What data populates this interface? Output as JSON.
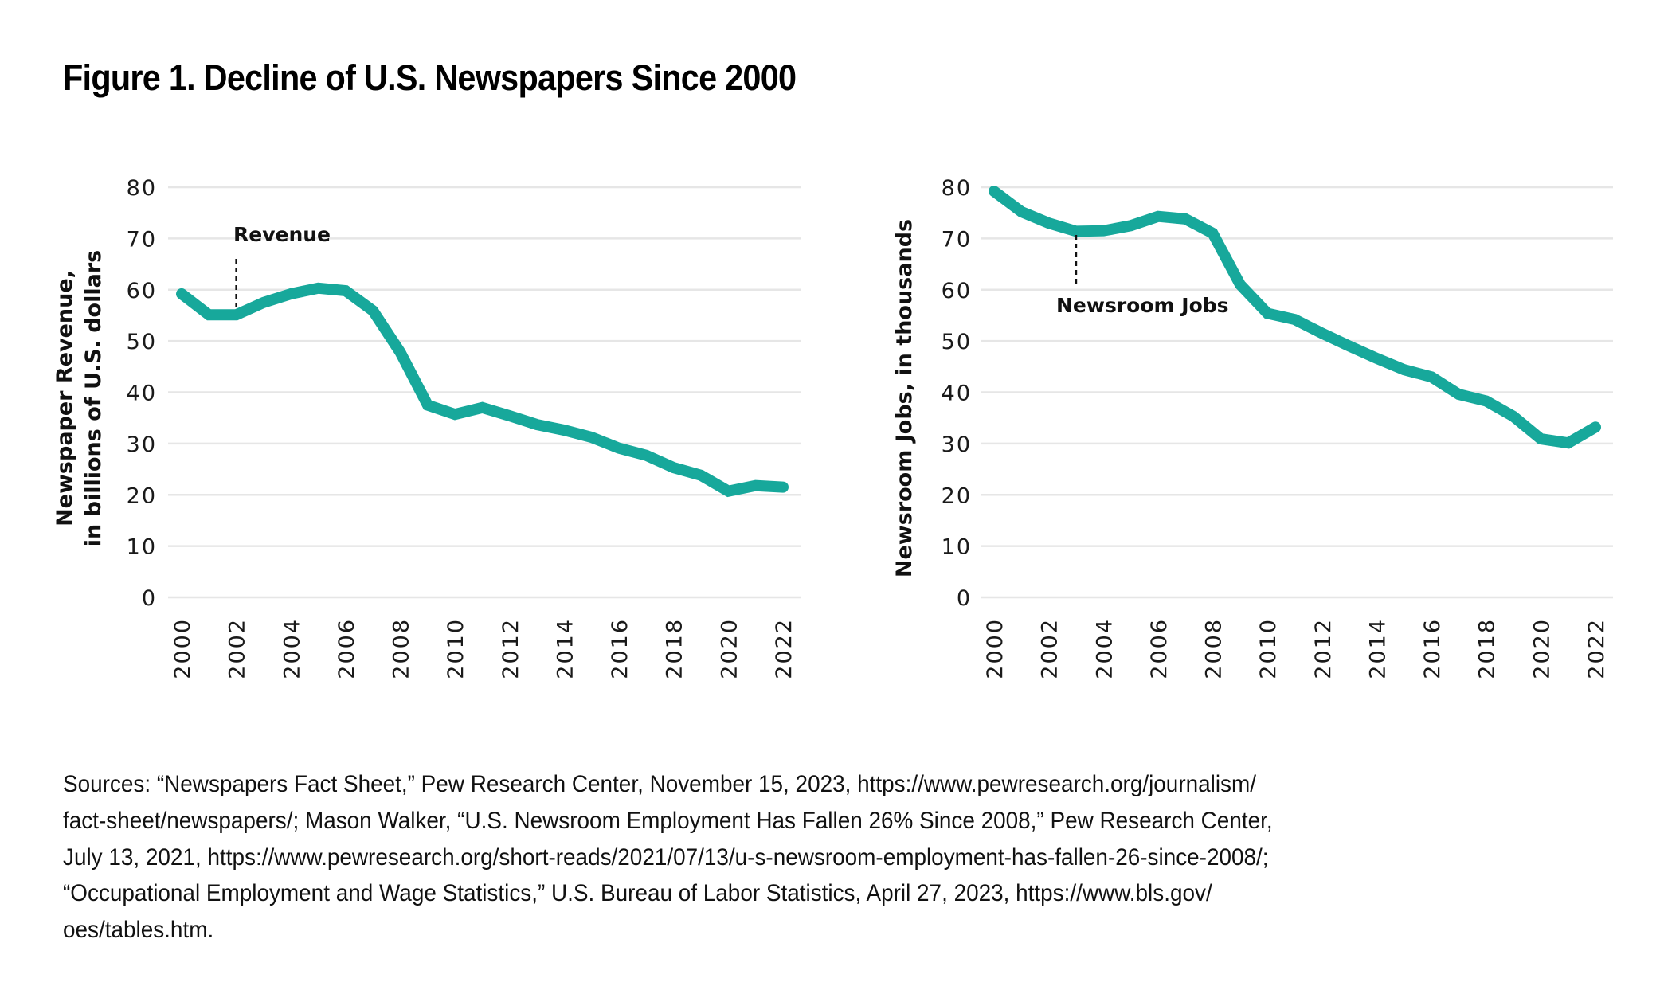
{
  "figure": {
    "title": "Figure 1. Decline of U.S. Newspapers Since 2000",
    "footnote_lines": [
      "Sources: “Newspapers Fact Sheet,” Pew Research Center, November 15, 2023, https://www.pewresearch.org/journalism/",
      "fact-sheet/newspapers/; Mason Walker, “U.S. Newsroom Employment Has Fallen 26% Since 2008,” Pew Research Center,",
      "July 13, 2021, https://www.pewresearch.org/short-reads/2021/07/13/u-s-newsroom-employment-has-fallen-26-since-2008/;",
      "“Occupational Employment and Wage Statistics,” U.S. Bureau of Labor Statistics, April 27, 2023, https://www.bls.gov/",
      "oes/tables.htm."
    ]
  },
  "colors": {
    "series": "#17a89b",
    "grid": "#e6e6e6",
    "text": "#111111"
  },
  "chart_data": [
    {
      "type": "line",
      "id": "revenue",
      "title": "",
      "ylabel_lines": [
        "Newspaper Revenue,",
        "in billions of U.S. dollars"
      ],
      "xlabel": "",
      "x": [
        2000,
        2001,
        2002,
        2003,
        2004,
        2005,
        2006,
        2007,
        2008,
        2009,
        2010,
        2011,
        2012,
        2013,
        2014,
        2015,
        2016,
        2017,
        2018,
        2019,
        2020,
        2021,
        2022
      ],
      "series": [
        {
          "name": "Revenue",
          "values": [
            59.2,
            55.1,
            55.1,
            57.5,
            59.2,
            60.3,
            59.8,
            55.9,
            47.8,
            37.5,
            35.7,
            37.0,
            35.4,
            33.7,
            32.6,
            31.2,
            29.1,
            27.7,
            25.3,
            23.8,
            20.7,
            21.8,
            21.5
          ]
        }
      ],
      "annotation": {
        "text": "Revenue",
        "x": 2002
      },
      "xticks": [
        "2000",
        "2002",
        "2004",
        "2006",
        "2008",
        "2010",
        "2012",
        "2014",
        "2016",
        "2018",
        "2020",
        "2022"
      ],
      "yticks": [
        "0",
        "10",
        "20",
        "30",
        "40",
        "50",
        "60",
        "70",
        "80"
      ],
      "xlim": [
        2000,
        2022
      ],
      "ylim": [
        0,
        80
      ],
      "grid": true,
      "legend": "none"
    },
    {
      "type": "line",
      "id": "jobs",
      "title": "",
      "ylabel_lines": [
        "Newsroom Jobs, in thousands"
      ],
      "xlabel": "",
      "x": [
        2000,
        2001,
        2002,
        2003,
        2004,
        2005,
        2006,
        2007,
        2008,
        2009,
        2010,
        2011,
        2012,
        2013,
        2014,
        2015,
        2016,
        2017,
        2018,
        2019,
        2020,
        2021,
        2022
      ],
      "series": [
        {
          "name": "Newsroom Jobs",
          "values": [
            79.2,
            75.2,
            73.0,
            71.4,
            71.5,
            72.5,
            74.3,
            73.8,
            71.0,
            61.0,
            55.4,
            54.2,
            51.5,
            49.0,
            46.6,
            44.4,
            43.0,
            39.6,
            38.3,
            35.3,
            30.9,
            30.1,
            33.2
          ]
        }
      ],
      "annotation": {
        "text": "Newsroom Jobs",
        "x": 2003
      },
      "xticks": [
        "2000",
        "2002",
        "2004",
        "2006",
        "2008",
        "2010",
        "2012",
        "2014",
        "2016",
        "2018",
        "2020",
        "2022"
      ],
      "yticks": [
        "0",
        "10",
        "20",
        "30",
        "40",
        "50",
        "60",
        "70",
        "80"
      ],
      "xlim": [
        2000,
        2022
      ],
      "ylim": [
        0,
        80
      ],
      "grid": true,
      "legend": "none"
    }
  ]
}
